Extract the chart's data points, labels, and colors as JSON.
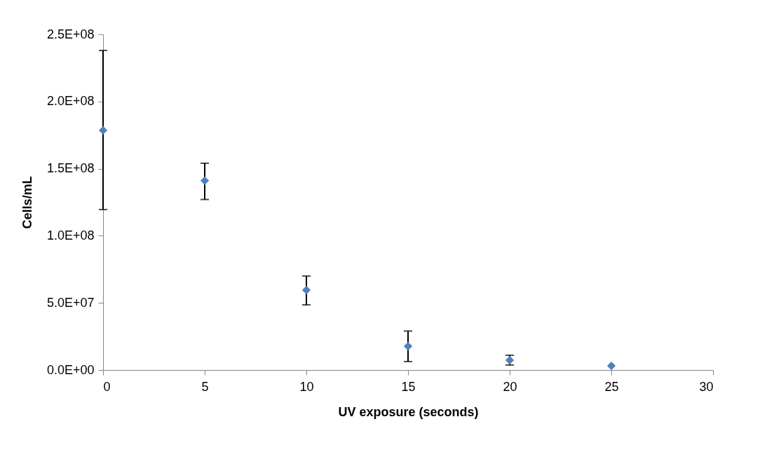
{
  "chart_data": {
    "type": "scatter",
    "xlabel": "UV exposure (seconds)",
    "ylabel": "Cells/mL",
    "x": [
      0,
      5,
      10,
      15,
      20,
      25
    ],
    "series": [
      {
        "color": "#4f81bd",
        "values": [
          178500000,
          141000000,
          59500000,
          17700000,
          7300000,
          3100000
        ],
        "errors": [
          [
            119500000,
            238000000
          ],
          [
            127000000,
            154000000
          ],
          [
            48500000,
            70000000
          ],
          [
            6300000,
            29000000
          ],
          [
            3700000,
            11000000
          ],
          null
        ]
      }
    ],
    "xlim": [
      0,
      30
    ],
    "xticks": [
      0,
      5,
      10,
      15,
      20,
      25,
      30
    ],
    "ylim": [
      0,
      250000000
    ],
    "yticks": [
      {
        "value": 0,
        "label": "0.0E+00"
      },
      {
        "value": 50000000,
        "label": "5.0E+07"
      },
      {
        "value": 100000000,
        "label": "1.0E+08"
      },
      {
        "value": 150000000,
        "label": "1.5E+08"
      },
      {
        "value": 200000000,
        "label": "2.0E+08"
      },
      {
        "value": 250000000,
        "label": "2.5E+08"
      }
    ],
    "grid": false,
    "legend": false,
    "marker": "diamond"
  }
}
